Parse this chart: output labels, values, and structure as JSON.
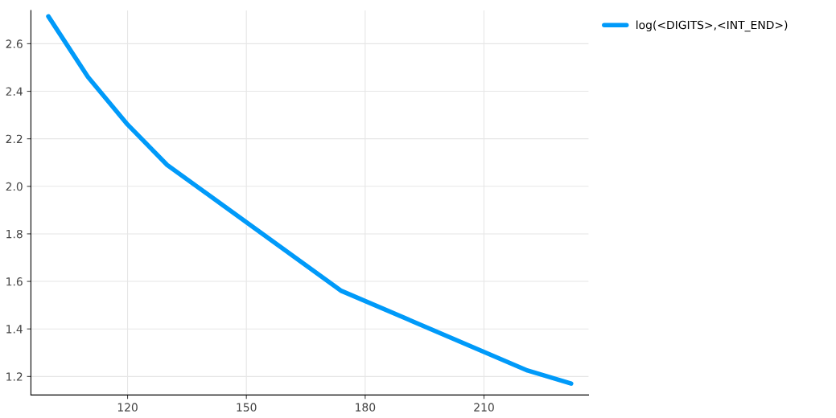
{
  "chart_data": {
    "type": "line",
    "x": [
      100,
      110,
      120,
      130,
      174,
      221,
      232
    ],
    "series": [
      {
        "name": "log(<DIGITS>,<INT_END>)",
        "color": "#009af9",
        "values": [
          2.715,
          2.46,
          2.26,
          2.09,
          1.56,
          1.225,
          1.17
        ]
      }
    ],
    "xlim": [
      95.6,
      236.4
    ],
    "ylim": [
      1.122,
      2.74
    ],
    "xticks": [
      120,
      150,
      180,
      210
    ],
    "yticks": [
      1.2,
      1.4,
      1.6,
      1.8,
      {
        "value": 2,
        "label": "2.0"
      },
      2.2,
      2.4,
      2.6
    ],
    "grid": true,
    "legend": "top right",
    "marker": "none",
    "line_style": "solid"
  }
}
